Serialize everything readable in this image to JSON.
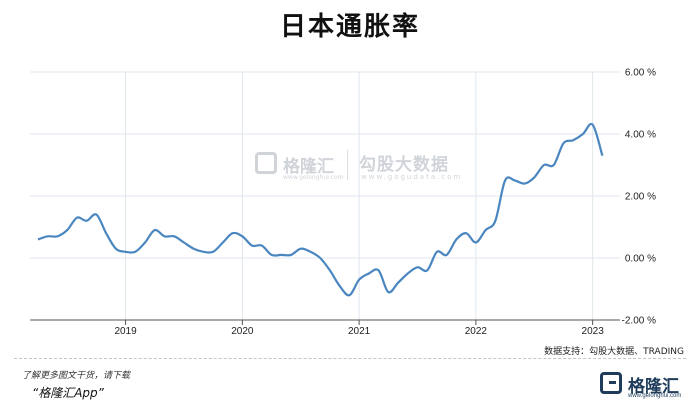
{
  "title": "日本通胀率",
  "source_text": "数据支持：勾股大数据、TRADING",
  "footer": {
    "hint": "了解更多图文干货，请下载",
    "app_name": "“格隆汇App”",
    "logo_text": "格隆汇",
    "logo_sub": "www.gelonghui.com"
  },
  "watermark": {
    "left_text": "格隆汇",
    "left_sub": "www.gelonghui.com",
    "right_text": "勾股大数据",
    "right_sub": "www.gogudata.com"
  },
  "colors": {
    "line": "#4a86c0",
    "grid": "#dfe6ec",
    "background": "#ffffff"
  },
  "chart_data": {
    "type": "line",
    "title": "日本通胀率",
    "xlabel": "",
    "ylabel": "",
    "ylim": [
      -2.0,
      6.0
    ],
    "yticks": [
      -2.0,
      0.0,
      2.0,
      4.0,
      6.0
    ],
    "ytick_labels": [
      "-2.00 %",
      "0.00 %",
      "2.00 %",
      "4.00 %",
      "6.00 %"
    ],
    "xticks": [
      "2019",
      "2020",
      "2021",
      "2022",
      "2023"
    ],
    "grid": true,
    "legend": "none",
    "series": [
      {
        "values": [
          [
            "2018-04",
            0.6
          ],
          [
            "2018-05",
            0.7
          ],
          [
            "2018-06",
            0.7
          ],
          [
            "2018-07",
            0.9
          ],
          [
            "2018-08",
            1.3
          ],
          [
            "2018-09",
            1.2
          ],
          [
            "2018-10",
            1.4
          ],
          [
            "2018-11",
            0.8
          ],
          [
            "2018-12",
            0.3
          ],
          [
            "2019-01",
            0.2
          ],
          [
            "2019-02",
            0.2
          ],
          [
            "2019-03",
            0.5
          ],
          [
            "2019-04",
            0.9
          ],
          [
            "2019-05",
            0.7
          ],
          [
            "2019-06",
            0.7
          ],
          [
            "2019-07",
            0.5
          ],
          [
            "2019-08",
            0.3
          ],
          [
            "2019-09",
            0.2
          ],
          [
            "2019-10",
            0.2
          ],
          [
            "2019-11",
            0.5
          ],
          [
            "2019-12",
            0.8
          ],
          [
            "2020-01",
            0.7
          ],
          [
            "2020-02",
            0.4
          ],
          [
            "2020-03",
            0.4
          ],
          [
            "2020-04",
            0.1
          ],
          [
            "2020-05",
            0.1
          ],
          [
            "2020-06",
            0.1
          ],
          [
            "2020-07",
            0.3
          ],
          [
            "2020-08",
            0.2
          ],
          [
            "2020-09",
            0.0
          ],
          [
            "2020-10",
            -0.4
          ],
          [
            "2020-11",
            -0.9
          ],
          [
            "2020-12",
            -1.2
          ],
          [
            "2021-01",
            -0.7
          ],
          [
            "2021-02",
            -0.5
          ],
          [
            "2021-03",
            -0.4
          ],
          [
            "2021-04",
            -1.1
          ],
          [
            "2021-05",
            -0.8
          ],
          [
            "2021-06",
            -0.5
          ],
          [
            "2021-07",
            -0.3
          ],
          [
            "2021-08",
            -0.4
          ],
          [
            "2021-09",
            0.2
          ],
          [
            "2021-10",
            0.1
          ],
          [
            "2021-11",
            0.6
          ],
          [
            "2021-12",
            0.8
          ],
          [
            "2022-01",
            0.5
          ],
          [
            "2022-02",
            0.9
          ],
          [
            "2022-03",
            1.2
          ],
          [
            "2022-04",
            2.5
          ],
          [
            "2022-05",
            2.5
          ],
          [
            "2022-06",
            2.4
          ],
          [
            "2022-07",
            2.6
          ],
          [
            "2022-08",
            3.0
          ],
          [
            "2022-09",
            3.0
          ],
          [
            "2022-10",
            3.7
          ],
          [
            "2022-11",
            3.8
          ],
          [
            "2022-12",
            4.0
          ],
          [
            "2023-01",
            4.3
          ],
          [
            "2023-02",
            3.3
          ]
        ]
      }
    ]
  }
}
